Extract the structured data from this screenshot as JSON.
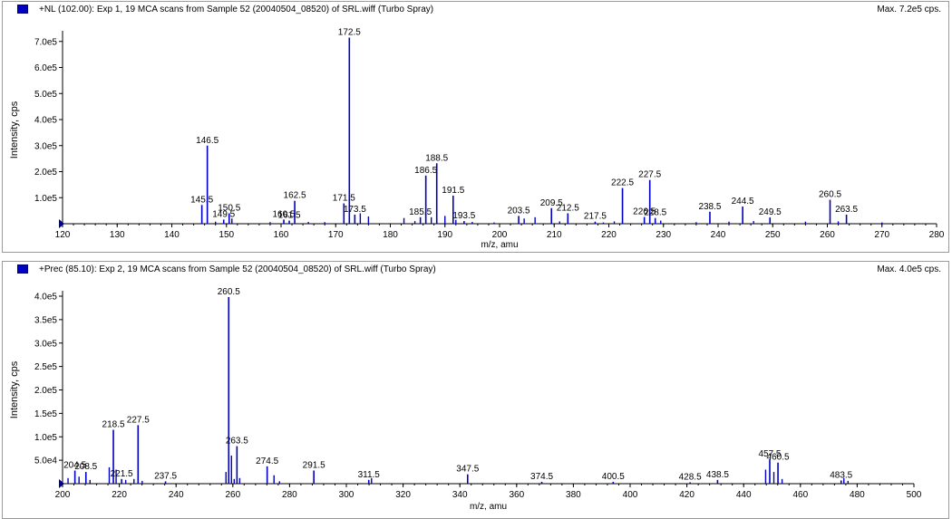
{
  "accent_color": "#0000c0",
  "panels": [
    {
      "title": "+NL (102.00): Exp 1, 19 MCA scans from Sample 52 (20040504_08520) of SRL.wiff (Turbo Spray)",
      "max_label": "Max. 7.2e5 cps."
    },
    {
      "title": "+Prec (85.10): Exp 2, 19 MCA scans from Sample 52 (20040504_08520) of SRL.wiff (Turbo Spray)",
      "max_label": "Max. 4.0e5 cps."
    }
  ],
  "chart_data": [
    {
      "type": "bar",
      "title": "+NL (102.00): Exp 1, 19 MCA scans from Sample 52 (20040504_08520) of SRL.wiff (Turbo Spray)",
      "xlabel": "m/z, amu",
      "ylabel": "Intensity, cps",
      "xlim": [
        120,
        280
      ],
      "ylim": [
        0,
        720000
      ],
      "x_ticks": [
        "120",
        "130",
        "140",
        "150",
        "160",
        "170",
        "180",
        "190",
        "200",
        "210",
        "220",
        "230",
        "240",
        "250",
        "260",
        "270",
        "280"
      ],
      "y_ticks": [
        {
          "value": 100000,
          "label": "1.0e5"
        },
        {
          "value": 200000,
          "label": "2.0e5"
        },
        {
          "value": 300000,
          "label": "3.0e5"
        },
        {
          "value": 400000,
          "label": "4.0e5"
        },
        {
          "value": 500000,
          "label": "5.0e5"
        },
        {
          "value": 600000,
          "label": "6.0e5"
        },
        {
          "value": 700000,
          "label": "7.0e5"
        }
      ],
      "peaks": [
        {
          "x": 145.5,
          "y": 72000,
          "label": "145.5"
        },
        {
          "x": 146.5,
          "y": 300000,
          "label": "146.5"
        },
        {
          "x": 149.5,
          "y": 16000,
          "label": "149.5"
        },
        {
          "x": 150.5,
          "y": 40000,
          "label": "150.5"
        },
        {
          "x": 160.5,
          "y": 16000,
          "label": "160.5"
        },
        {
          "x": 161.5,
          "y": 12000,
          "label": "161.5"
        },
        {
          "x": 162.5,
          "y": 88000,
          "label": "162.5"
        },
        {
          "x": 171.5,
          "y": 78000,
          "label": "171.5"
        },
        {
          "x": 172.5,
          "y": 715000,
          "label": "172.5"
        },
        {
          "x": 173.5,
          "y": 35000,
          "label": "173.5"
        },
        {
          "x": 185.5,
          "y": 25000,
          "label": "185.5"
        },
        {
          "x": 186.5,
          "y": 185000,
          "label": "186.5"
        },
        {
          "x": 188.5,
          "y": 232000,
          "label": "188.5"
        },
        {
          "x": 191.5,
          "y": 108000,
          "label": "191.5"
        },
        {
          "x": 193.5,
          "y": 10000,
          "label": "193.5"
        },
        {
          "x": 203.5,
          "y": 30000,
          "label": "203.5"
        },
        {
          "x": 209.5,
          "y": 60000,
          "label": "209.5"
        },
        {
          "x": 212.5,
          "y": 40000,
          "label": "212.5"
        },
        {
          "x": 217.5,
          "y": 8000,
          "label": "217.5"
        },
        {
          "x": 222.5,
          "y": 137000,
          "label": "222.5"
        },
        {
          "x": 226.5,
          "y": 26000,
          "label": "226.5"
        },
        {
          "x": 227.5,
          "y": 168000,
          "label": "227.5"
        },
        {
          "x": 228.5,
          "y": 22000,
          "label": "228.5"
        },
        {
          "x": 238.5,
          "y": 46000,
          "label": "238.5"
        },
        {
          "x": 244.5,
          "y": 66000,
          "label": "244.5"
        },
        {
          "x": 249.5,
          "y": 24000,
          "label": "249.5"
        },
        {
          "x": 260.5,
          "y": 92000,
          "label": "260.5"
        },
        {
          "x": 263.5,
          "y": 35000,
          "label": "263.5"
        }
      ],
      "minor_peaks": [
        {
          "x": 151.0,
          "y": 20000
        },
        {
          "x": 148.0,
          "y": 8000
        },
        {
          "x": 158.0,
          "y": 6000
        },
        {
          "x": 165.0,
          "y": 7000
        },
        {
          "x": 168.0,
          "y": 6000
        },
        {
          "x": 174.5,
          "y": 40000
        },
        {
          "x": 176.0,
          "y": 28000
        },
        {
          "x": 182.5,
          "y": 22000
        },
        {
          "x": 184.5,
          "y": 10000
        },
        {
          "x": 187.5,
          "y": 25000
        },
        {
          "x": 190.0,
          "y": 30000
        },
        {
          "x": 192.0,
          "y": 15000
        },
        {
          "x": 195.0,
          "y": 7000
        },
        {
          "x": 199.0,
          "y": 5000
        },
        {
          "x": 204.5,
          "y": 20000
        },
        {
          "x": 206.5,
          "y": 25000
        },
        {
          "x": 211.0,
          "y": 9000
        },
        {
          "x": 219.0,
          "y": 5000
        },
        {
          "x": 221.0,
          "y": 9000
        },
        {
          "x": 229.5,
          "y": 12000
        },
        {
          "x": 236.0,
          "y": 6000
        },
        {
          "x": 242.0,
          "y": 8000
        },
        {
          "x": 246.5,
          "y": 10000
        },
        {
          "x": 256.0,
          "y": 8000
        },
        {
          "x": 262.0,
          "y": 9000
        },
        {
          "x": 270.0,
          "y": 5000
        }
      ]
    },
    {
      "type": "bar",
      "title": "+Prec (85.10): Exp 2, 19 MCA scans from Sample 52 (20040504_08520) of SRL.wiff (Turbo Spray)",
      "xlabel": "m/z, amu",
      "ylabel": "Intensity, cps",
      "xlim": [
        200,
        510
      ],
      "ylim": [
        0,
        400000
      ],
      "x_ticks": [
        "200",
        "220",
        "240",
        "260",
        "280",
        "300",
        "320",
        "340",
        "360",
        "380",
        "400",
        "420",
        "440",
        "460",
        "480",
        "500"
      ],
      "y_ticks": [
        {
          "value": 50000,
          "label": "5.0e4"
        },
        {
          "value": 100000,
          "label": "1.0e5"
        },
        {
          "value": 150000,
          "label": "1.5e5"
        },
        {
          "value": 200000,
          "label": "2.0e5"
        },
        {
          "value": 250000,
          "label": "2.5e5"
        },
        {
          "value": 300000,
          "label": "3.0e5"
        },
        {
          "value": 350000,
          "label": "3.5e5"
        },
        {
          "value": 400000,
          "label": "4.0e5"
        }
      ],
      "peaks": [
        {
          "x": 204.5,
          "y": 28000,
          "label": "204.5"
        },
        {
          "x": 208.5,
          "y": 25000,
          "label": "208.5"
        },
        {
          "x": 218.5,
          "y": 115000,
          "label": "218.5"
        },
        {
          "x": 221.5,
          "y": 10000,
          "label": "221.5"
        },
        {
          "x": 227.5,
          "y": 125000,
          "label": "227.5"
        },
        {
          "x": 237.5,
          "y": 5000,
          "label": "237.5"
        },
        {
          "x": 260.5,
          "y": 398000,
          "label": "260.5"
        },
        {
          "x": 263.5,
          "y": 80000,
          "label": "263.5"
        },
        {
          "x": 274.5,
          "y": 37000,
          "label": "274.5"
        },
        {
          "x": 291.5,
          "y": 28000,
          "label": "291.5"
        },
        {
          "x": 311.5,
          "y": 8000,
          "label": "311.5"
        },
        {
          "x": 347.5,
          "y": 20000,
          "label": "347.5"
        },
        {
          "x": 374.5,
          "y": 4000,
          "label": "374.5"
        },
        {
          "x": 400.5,
          "y": 4000,
          "label": "400.5"
        },
        {
          "x": 428.5,
          "y": 3000,
          "label": "428.5"
        },
        {
          "x": 438.5,
          "y": 8000,
          "label": "438.5"
        },
        {
          "x": 457.5,
          "y": 52000,
          "label": "457.5"
        },
        {
          "x": 460.5,
          "y": 45000,
          "label": "460.5"
        },
        {
          "x": 483.5,
          "y": 7000,
          "label": "483.5"
        }
      ],
      "minor_peaks": [
        {
          "x": 202.0,
          "y": 12000
        },
        {
          "x": 206.0,
          "y": 15000
        },
        {
          "x": 210.0,
          "y": 8000
        },
        {
          "x": 217.0,
          "y": 35000
        },
        {
          "x": 219.5,
          "y": 30000
        },
        {
          "x": 223.0,
          "y": 8000
        },
        {
          "x": 226.0,
          "y": 10000
        },
        {
          "x": 229.0,
          "y": 6000
        },
        {
          "x": 259.5,
          "y": 25000
        },
        {
          "x": 261.5,
          "y": 60000
        },
        {
          "x": 262.5,
          "y": 10000
        },
        {
          "x": 264.5,
          "y": 12000
        },
        {
          "x": 277.0,
          "y": 18000
        },
        {
          "x": 279.0,
          "y": 5000
        },
        {
          "x": 312.5,
          "y": 12000
        },
        {
          "x": 456.0,
          "y": 30000
        },
        {
          "x": 459.0,
          "y": 25000
        },
        {
          "x": 462.0,
          "y": 10000
        },
        {
          "x": 484.5,
          "y": 12000
        },
        {
          "x": 486.0,
          "y": 6000
        }
      ]
    }
  ]
}
